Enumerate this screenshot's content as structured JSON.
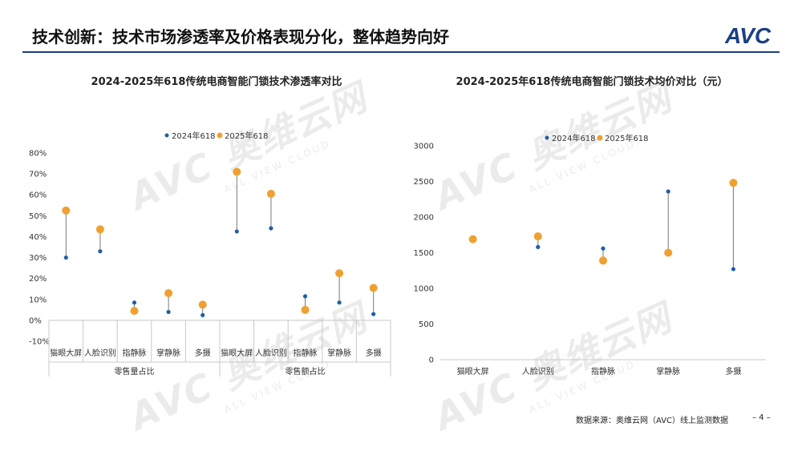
{
  "header": {
    "title": "技术创新：技术市场渗透率及价格表现分化，整体趋势向好",
    "logo_text": "AVC",
    "brand_color": "#1a3f86"
  },
  "watermark": {
    "brand": "AVC 奥维云网",
    "sub": "ALL VIEW CLOUD"
  },
  "chart_data": [
    {
      "type": "dot-range",
      "title": "2024-2025年618传统电商智能门锁技术渗透率对比",
      "xlabel": "",
      "ylabel": "",
      "ylim": [
        -10,
        80
      ],
      "y_ticks": [
        "-10%",
        "0%",
        "10%",
        "20%",
        "30%",
        "40%",
        "50%",
        "60%",
        "70%",
        "80%"
      ],
      "y_tick_values": [
        -10,
        0,
        10,
        20,
        30,
        40,
        50,
        60,
        70,
        80
      ],
      "groups": [
        "零售量占比",
        "零售额占比"
      ],
      "categories": [
        "猫眼大屏",
        "人脸识别",
        "指静脉",
        "掌静脉",
        "多摄",
        "猫眼大屏",
        "人脸识别",
        "指静脉",
        "掌静脉",
        "多摄"
      ],
      "legend_position": "top",
      "series": [
        {
          "name": "2024年618",
          "color": "#1f5fa8",
          "values": [
            30,
            33,
            8.5,
            4,
            2.5,
            42.5,
            44,
            11.5,
            8.5,
            3
          ]
        },
        {
          "name": "2025年618",
          "color": "#f0a030",
          "values": [
            52.5,
            43.5,
            4.5,
            13,
            7.5,
            71,
            60.5,
            5,
            22.5,
            15.5
          ]
        }
      ]
    },
    {
      "type": "dot-range",
      "title": "2024-2025年618传统电商智能门锁技术均价对比（元）",
      "xlabel": "",
      "ylabel": "",
      "ylim": [
        0,
        3000
      ],
      "y_ticks": [
        "0",
        "500",
        "1000",
        "1500",
        "2000",
        "2500",
        "3000"
      ],
      "y_tick_values": [
        0,
        500,
        1000,
        1500,
        2000,
        2500,
        3000
      ],
      "categories": [
        "猫眼大屏",
        "人脸识别",
        "指静脉",
        "掌静脉",
        "多摄"
      ],
      "legend_position": "top",
      "series": [
        {
          "name": "2024年618",
          "color": "#1f5fa8",
          "values": [
            1690,
            1580,
            1560,
            2360,
            1270
          ]
        },
        {
          "name": "2025年618",
          "color": "#f0a030",
          "values": [
            1690,
            1730,
            1390,
            1500,
            2480
          ]
        }
      ]
    }
  ],
  "footer": {
    "source": "数据来源：奥维云网（AVC）线上监测数据",
    "page": "– 4 –"
  }
}
